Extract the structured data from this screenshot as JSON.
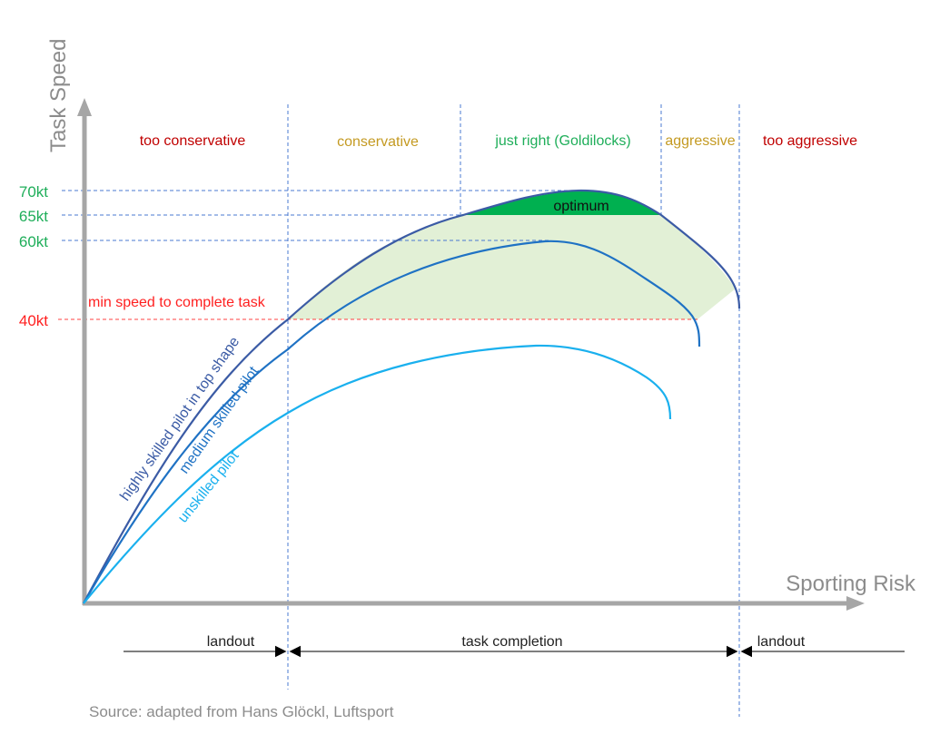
{
  "axes": {
    "y_label": "Task Speed",
    "x_label": "Sporting Risk",
    "y_ticks": [
      "70kt",
      "65kt",
      "60kt",
      "40kt"
    ]
  },
  "min_speed_label": "min speed to complete task",
  "zones": [
    {
      "label": "too conservative",
      "color": "#c00000"
    },
    {
      "label": "conservative",
      "color": "#c49a22"
    },
    {
      "label": "just right (Goldilocks)",
      "color": "#1fae5a"
    },
    {
      "label": "aggressive",
      "color": "#c49a22"
    },
    {
      "label": "too aggressive",
      "color": "#c00000"
    }
  ],
  "optimum_label": "optimum",
  "curves": [
    {
      "label": "highly skilled pilot in top shape",
      "color": "#3b5ba5"
    },
    {
      "label": "medium skilled pilot",
      "color": "#1f72c4"
    },
    {
      "label": "unskilled pilot",
      "color": "#1ab0ee"
    }
  ],
  "outcomes": [
    {
      "label": "landout"
    },
    {
      "label": "task completion"
    },
    {
      "label": "landout"
    }
  ],
  "source": "Source: adapted from Hans Glöckl, Luftsport",
  "colors": {
    "axis": "#a6a6a6",
    "feasible_fill": "#e2f0d6",
    "optimum_fill": "#00b050",
    "tick_green": "#1fae5a",
    "min_red": "#ff2020"
  }
}
